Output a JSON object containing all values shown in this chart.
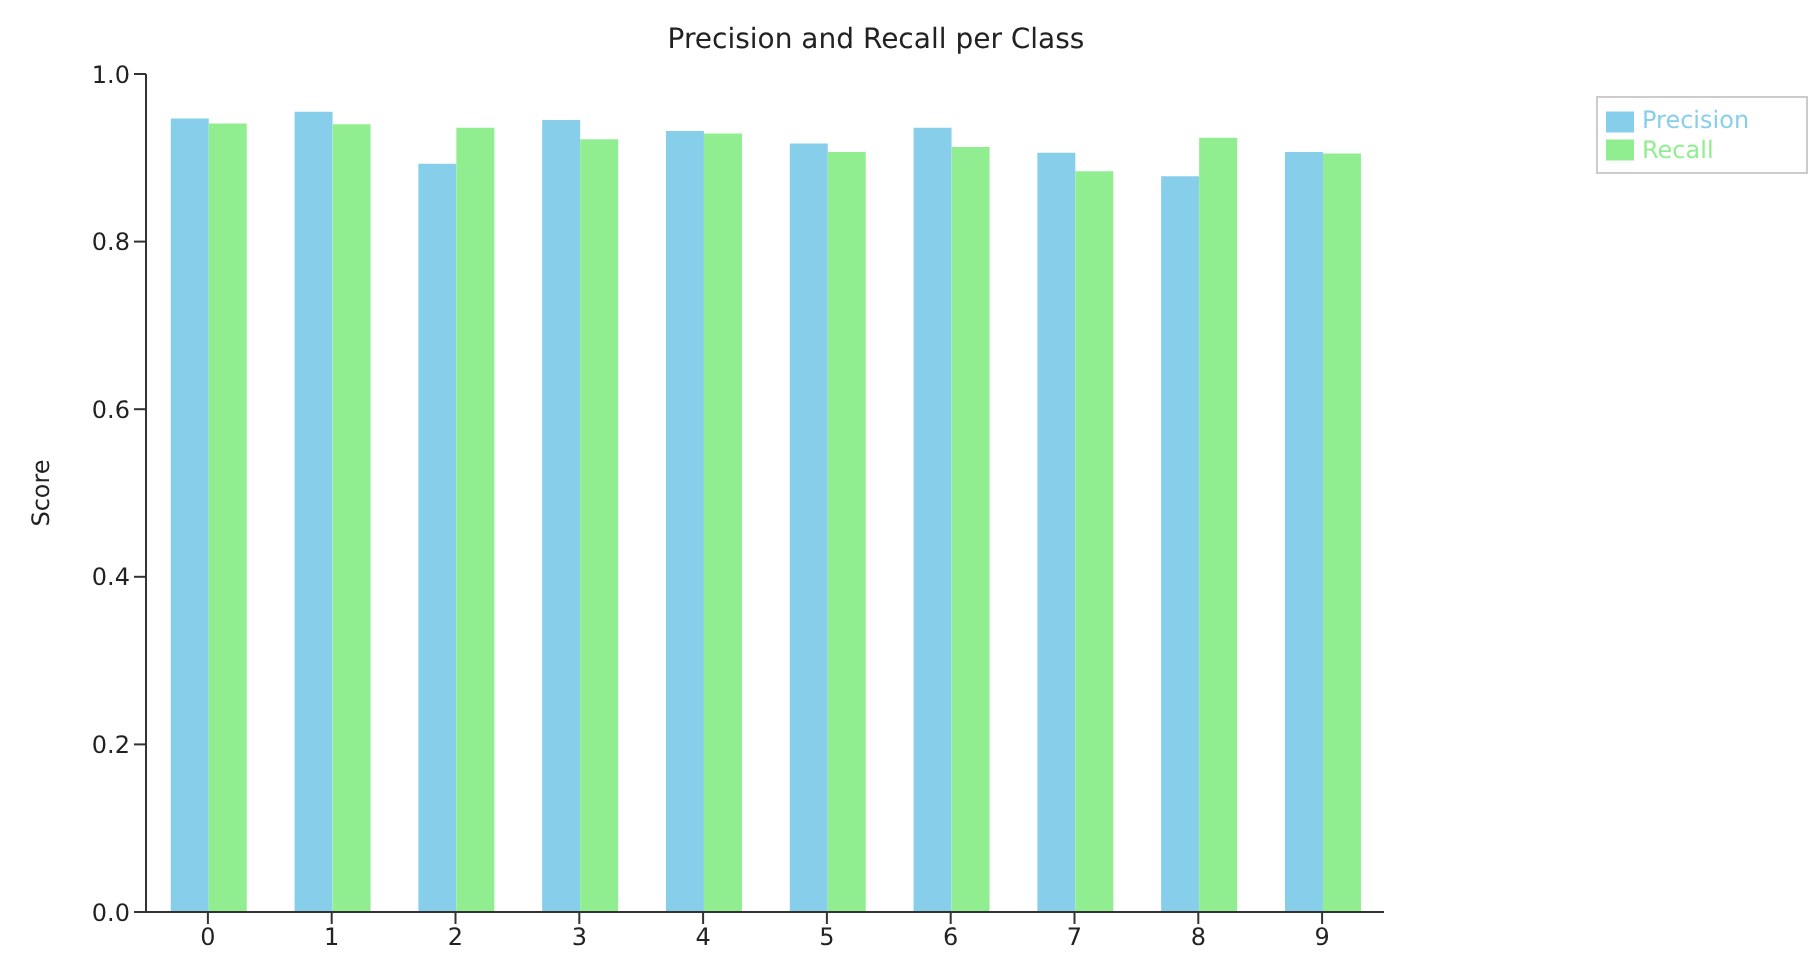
{
  "chart_data": {
    "type": "bar",
    "title": "Precision and Recall per Class",
    "ylabel": "Score",
    "categories": [
      "0",
      "1",
      "2",
      "3",
      "4",
      "5",
      "6",
      "7",
      "8",
      "9"
    ],
    "series": [
      {
        "name": "Precision",
        "color": "#87ceeb",
        "values": [
          0.947,
          0.955,
          0.893,
          0.945,
          0.932,
          0.917,
          0.936,
          0.906,
          0.878,
          0.907
        ]
      },
      {
        "name": "Recall",
        "color": "#90ee90",
        "values": [
          0.941,
          0.94,
          0.936,
          0.922,
          0.929,
          0.907,
          0.913,
          0.884,
          0.924,
          0.905
        ]
      }
    ],
    "ylim": [
      0,
      1.0
    ],
    "yticks": [
      {
        "value": 0,
        "label": "0.0"
      },
      {
        "value": 0.2,
        "label": "0.2"
      },
      {
        "value": 0.4,
        "label": "0.4"
      },
      {
        "value": 0.6,
        "label": "0.6"
      },
      {
        "value": 0.8,
        "label": "0.8"
      },
      {
        "value": 1.0,
        "label": "1.0"
      }
    ],
    "grid": false,
    "legend": "top right"
  }
}
